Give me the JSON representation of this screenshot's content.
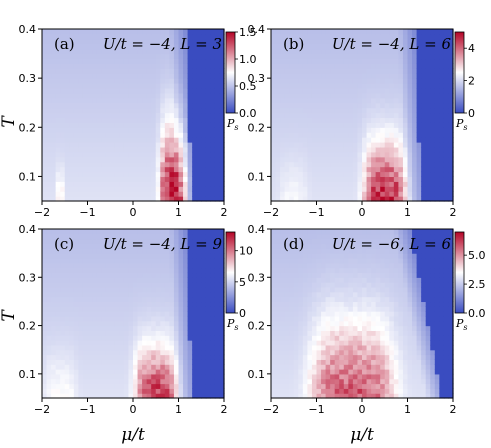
{
  "chart_data": {
    "type": "heatmap",
    "xlabel": "μ/t",
    "ylabel": "T",
    "colorbar_label": "P_s",
    "colormap": [
      "#3a4cc0",
      "#ffffff",
      "#b40426"
    ],
    "xlim": [
      -2,
      2
    ],
    "ylim": [
      0.05,
      0.4
    ],
    "xticks": [
      "−2",
      "−1",
      "0",
      "1",
      "2"
    ],
    "yticks": [
      "0.1",
      "0.2",
      "0.3",
      "0.4"
    ],
    "panels": [
      {
        "label": "(a)",
        "title": "U/t = −4, L = 3",
        "clim": [
          0,
          1.5
        ],
        "cbar_ticks": [
          "0.0",
          "0.5",
          "1.0",
          "1.5"
        ],
        "cbar_tick_values": [
          0,
          0.5,
          1.0,
          1.5
        ],
        "insulator_edge_mu_at_Tmax": 1.15,
        "insulator_edge_mu_at_Tmin": 1.3,
        "blobs": [
          {
            "mu": -1.6,
            "T": 0.1,
            "width": 0.1,
            "T_extent": 0.06,
            "peak": 1.0
          },
          {
            "mu": 0.9,
            "T": 0.09,
            "width": 0.6,
            "T_extent": 0.14,
            "peak": 1.4
          }
        ]
      },
      {
        "label": "(b)",
        "title": "U/t = −4, L = 6",
        "clim": [
          0,
          5
        ],
        "cbar_ticks": [
          "0",
          "2",
          "4"
        ],
        "cbar_tick_values": [
          0,
          2,
          4
        ],
        "insulator_edge_mu_at_Tmax": 1.15,
        "insulator_edge_mu_at_Tmin": 1.3,
        "blobs": [
          {
            "mu": -1.5,
            "T": 0.09,
            "width": 0.6,
            "T_extent": 0.08,
            "peak": 2.2
          },
          {
            "mu": 0.5,
            "T": 0.09,
            "width": 0.9,
            "T_extent": 0.11,
            "peak": 4.5
          }
        ]
      },
      {
        "label": "(c)",
        "title": "U/t = −4, L = 9",
        "clim": [
          0,
          13
        ],
        "cbar_ticks": [
          "0",
          "5",
          "10"
        ],
        "cbar_tick_values": [
          0,
          5,
          10
        ],
        "insulator_edge_mu_at_Tmax": 1.15,
        "insulator_edge_mu_at_Tmin": 1.3,
        "blobs": [
          {
            "mu": -1.6,
            "T": 0.08,
            "width": 0.7,
            "T_extent": 0.09,
            "peak": 6.0
          },
          {
            "mu": 0.5,
            "T": 0.08,
            "width": 0.9,
            "T_extent": 0.1,
            "peak": 11.0
          }
        ]
      },
      {
        "label": "(d)",
        "title": "U/t = −6, L = 6",
        "clim": [
          0,
          7
        ],
        "cbar_ticks": [
          "0.0",
          "2.5",
          "5.0"
        ],
        "cbar_tick_values": [
          0,
          2.5,
          5.0
        ],
        "insulator_edge_mu_at_Tmax": 1.05,
        "insulator_edge_mu_at_Tmin": 1.75,
        "blobs": [
          {
            "mu": -0.2,
            "T": 0.12,
            "width": 1.8,
            "T_extent": 0.15,
            "peak": 5.5
          }
        ]
      }
    ]
  }
}
